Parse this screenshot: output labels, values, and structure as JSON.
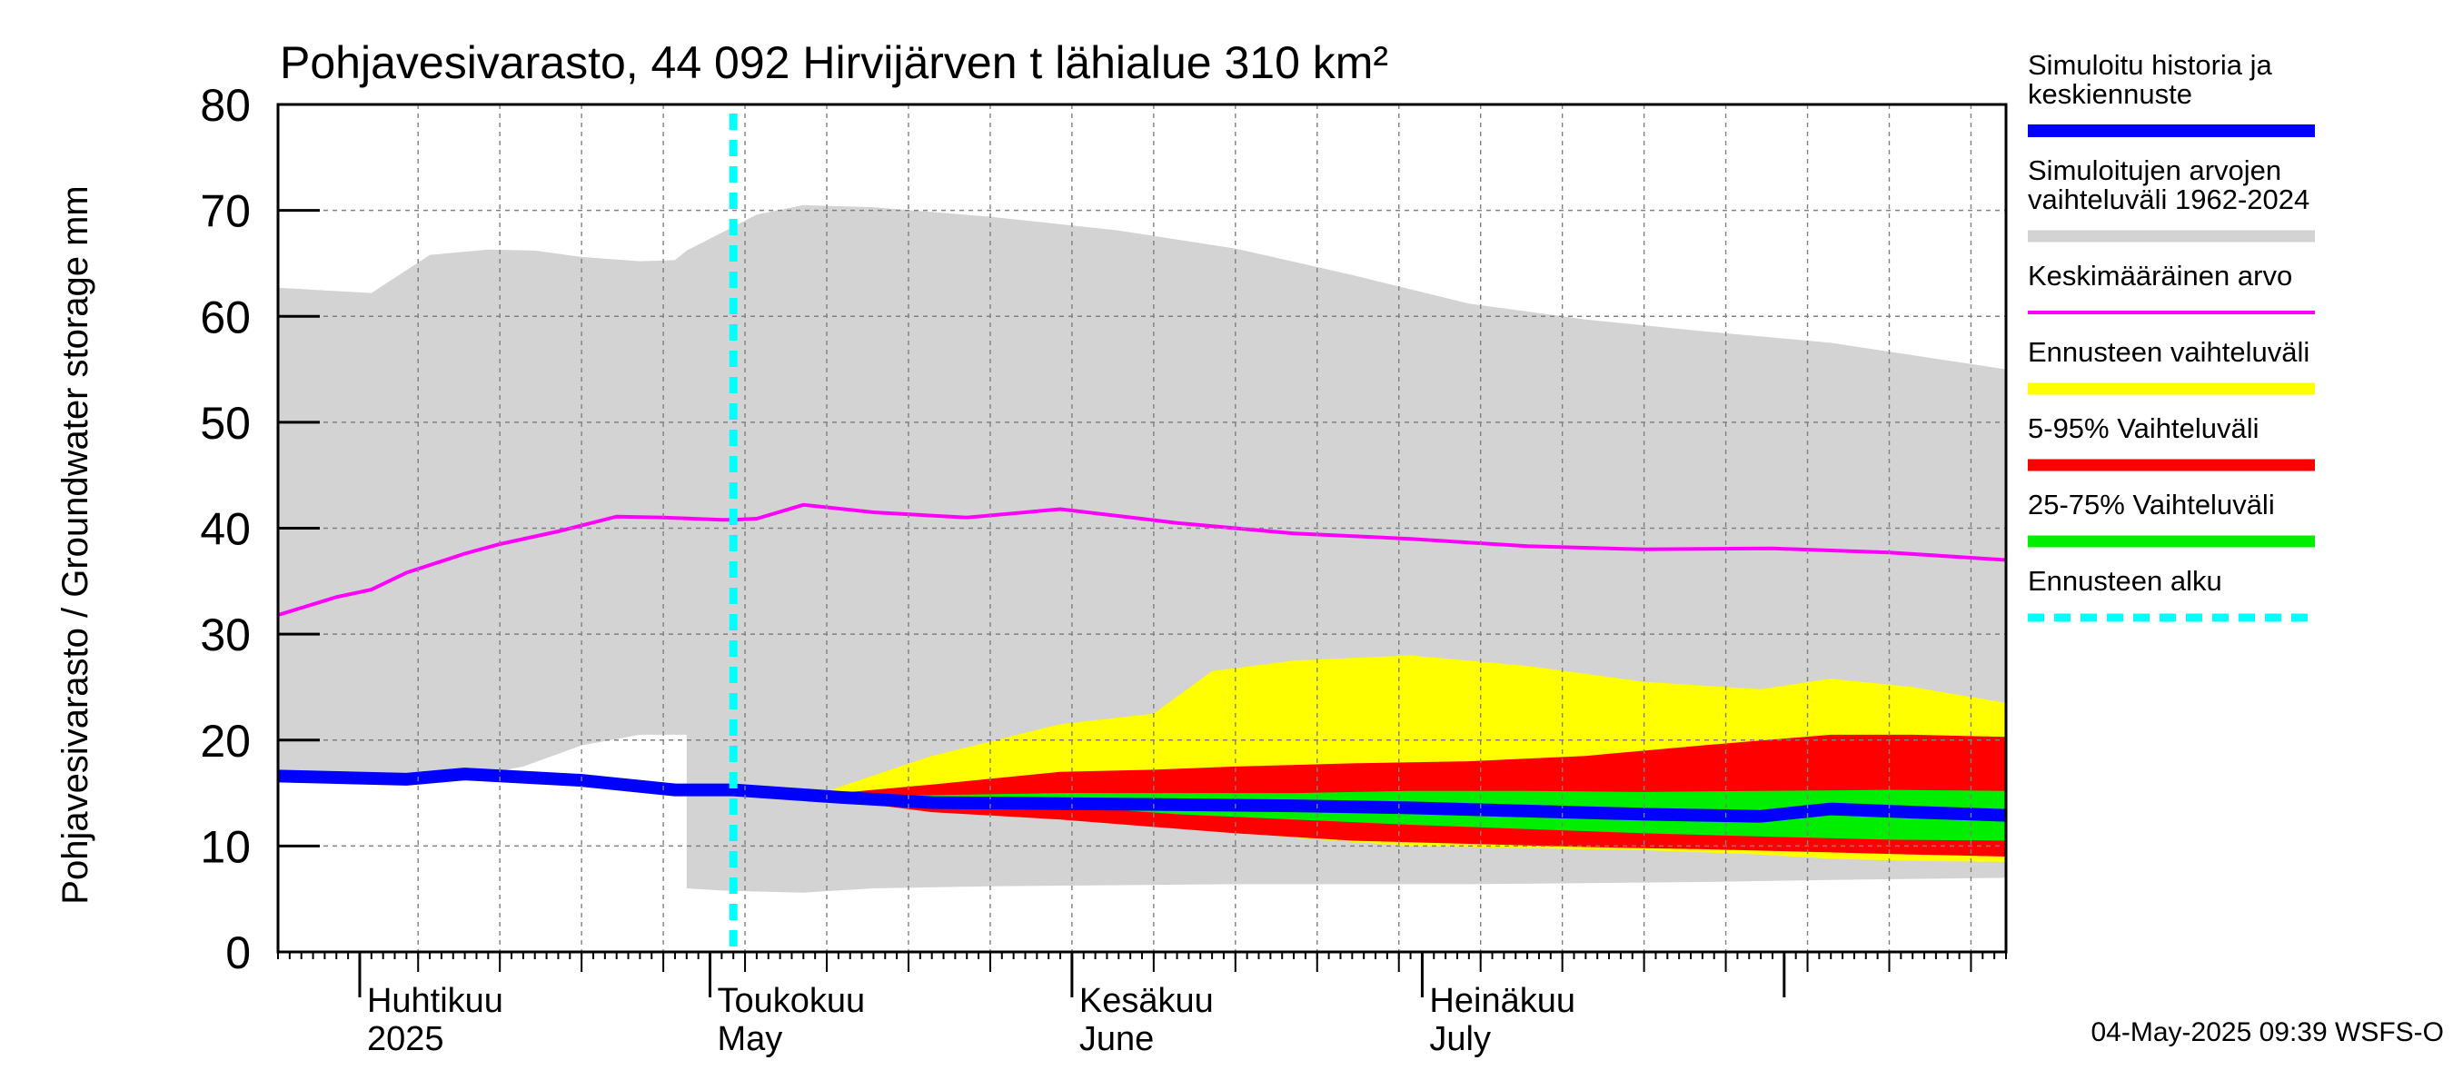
{
  "chart_data": {
    "type": "area",
    "title": "Pohjavesivarasto, 44 092 Hirvijärven t lähialue 310 km²",
    "ylabel": "Pohjavesivarasto / Groundwater storage   mm",
    "ylim": [
      0,
      80
    ],
    "yticks": [
      "0",
      "10",
      "20",
      "30",
      "40",
      "50",
      "60",
      "70",
      "80"
    ],
    "xlim": [
      "2025-03-25",
      "2025-08-20"
    ],
    "grid": true,
    "legend_position": "right",
    "month_labels": [
      {
        "date": "2025-04-01",
        "fi": "Huhtikuu",
        "en": "2025"
      },
      {
        "date": "2025-05-01",
        "fi": "Toukokuu",
        "en": "May"
      },
      {
        "date": "2025-06-01",
        "fi": "Kesäkuu",
        "en": "June"
      },
      {
        "date": "2025-07-01",
        "fi": "Heinäkuu",
        "en": "July"
      }
    ],
    "forecast_start": "2025-05-03",
    "timestamp": "04-May-2025 09:39 WSFS-O",
    "colors": {
      "history": "#0000ff",
      "sim_range": "#d3d3d3",
      "mean": "#ff00ff",
      "forecast_range": "#ffff00",
      "p5_95": "#ff0000",
      "p25_75": "#00ee00",
      "forecast_start": "#00ffff"
    },
    "legend": [
      {
        "key": "history",
        "lines": [
          "Simuloitu historia ja",
          "keskiennuste"
        ],
        "style": "thick"
      },
      {
        "key": "sim_range",
        "lines": [
          "Simuloitujen arvojen",
          "vaihteluväli 1962-2024"
        ],
        "style": "band"
      },
      {
        "key": "mean",
        "lines": [
          "Keskimääräinen arvo"
        ],
        "style": "thin"
      },
      {
        "key": "forecast_range",
        "lines": [
          "Ennusteen vaihteluväli"
        ],
        "style": "band"
      },
      {
        "key": "p5_95",
        "lines": [
          "5-95% Vaihteluväli"
        ],
        "style": "band"
      },
      {
        "key": "p25_75",
        "lines": [
          "25-75% Vaihteluväli"
        ],
        "style": "band"
      },
      {
        "key": "forecast_start",
        "lines": [
          "Ennusteen alku"
        ],
        "style": "dashed"
      }
    ],
    "series": [
      {
        "key": "sim_range",
        "type": "band",
        "x": [
          "2025-03-25",
          "2025-04-02",
          "2025-04-07",
          "2025-04-12",
          "2025-04-16",
          "2025-04-20",
          "2025-04-25",
          "2025-04-28",
          "2025-04-29",
          "2025-05-02",
          "2025-05-05",
          "2025-05-09",
          "2025-05-15",
          "2025-05-25",
          "2025-06-05",
          "2025-06-15",
          "2025-06-25",
          "2025-07-05",
          "2025-07-15",
          "2025-07-25",
          "2025-08-05",
          "2025-08-20"
        ],
        "upper": [
          62.7,
          62.2,
          65.8,
          66.3,
          66.2,
          65.6,
          65.2,
          65.3,
          66.2,
          67.9,
          69.6,
          70.5,
          70.3,
          69.4,
          68.1,
          66.4,
          63.9,
          61.2,
          59.7,
          58.6,
          57.5,
          55.0
        ],
        "lower": [
          0.0,
          0.0,
          0.0,
          0.0,
          0.0,
          0.0,
          0.0,
          0.0,
          6.0,
          5.8,
          5.7,
          5.6,
          6.0,
          6.2,
          6.3,
          6.4,
          6.4,
          6.4,
          6.5,
          6.6,
          6.8,
          7.0
        ]
      },
      {
        "key": "sim_range_notch",
        "type": "band",
        "x": [
          "2025-03-25",
          "2025-04-10",
          "2025-04-15",
          "2025-04-20",
          "2025-04-25",
          "2025-04-28",
          "2025-04-29"
        ],
        "upper": [
          16.6,
          16.4,
          17.5,
          19.5,
          20.5,
          20.5,
          20.5
        ],
        "lower": [
          0.0,
          0.0,
          0.0,
          0.0,
          0.0,
          0.0,
          0.0
        ],
        "fill": "#ffffff"
      },
      {
        "key": "forecast_range",
        "type": "band",
        "x": [
          "2025-05-03",
          "2025-05-10",
          "2025-05-20",
          "2025-05-31",
          "2025-06-08",
          "2025-06-13",
          "2025-06-20",
          "2025-06-30",
          "2025-07-10",
          "2025-07-20",
          "2025-07-30",
          "2025-08-05",
          "2025-08-12",
          "2025-08-20"
        ],
        "upper": [
          15.2,
          14.8,
          18.5,
          21.5,
          22.5,
          26.5,
          27.5,
          28.0,
          27.0,
          25.5,
          24.8,
          25.8,
          25.0,
          23.5
        ],
        "lower": [
          15.2,
          14.6,
          13.5,
          12.7,
          12.2,
          11.5,
          10.8,
          10.0,
          9.8,
          9.6,
          9.2,
          8.8,
          8.6,
          8.5
        ]
      },
      {
        "key": "p5_95",
        "type": "band",
        "x": [
          "2025-05-03",
          "2025-05-10",
          "2025-05-20",
          "2025-05-31",
          "2025-06-08",
          "2025-06-15",
          "2025-06-25",
          "2025-07-05",
          "2025-07-15",
          "2025-07-25",
          "2025-08-05",
          "2025-08-12",
          "2025-08-20"
        ],
        "upper": [
          15.2,
          14.8,
          15.8,
          17.0,
          17.2,
          17.5,
          17.8,
          18.0,
          18.5,
          19.5,
          20.5,
          20.5,
          20.3
        ],
        "lower": [
          15.2,
          14.6,
          13.2,
          12.5,
          11.8,
          11.2,
          10.5,
          10.2,
          9.9,
          9.7,
          9.4,
          9.2,
          9.0
        ]
      },
      {
        "key": "p25_75",
        "type": "band",
        "x": [
          "2025-05-03",
          "2025-05-10",
          "2025-05-20",
          "2025-05-31",
          "2025-06-10",
          "2025-06-20",
          "2025-06-30",
          "2025-07-10",
          "2025-07-20",
          "2025-07-30",
          "2025-08-10",
          "2025-08-20"
        ],
        "upper": [
          15.2,
          14.7,
          14.8,
          15.0,
          15.0,
          15.0,
          15.2,
          15.2,
          15.1,
          15.2,
          15.3,
          15.2
        ],
        "lower": [
          15.2,
          14.6,
          14.0,
          13.8,
          13.0,
          12.5,
          12.0,
          11.6,
          11.2,
          10.9,
          10.6,
          10.5
        ]
      },
      {
        "key": "mean",
        "type": "line",
        "x": [
          "2025-03-25",
          "2025-03-30",
          "2025-04-02",
          "2025-04-05",
          "2025-04-10",
          "2025-04-13",
          "2025-04-18",
          "2025-04-23",
          "2025-04-27",
          "2025-05-02",
          "2025-05-03",
          "2025-05-05",
          "2025-05-09",
          "2025-05-15",
          "2025-05-23",
          "2025-05-31",
          "2025-06-10",
          "2025-06-20",
          "2025-06-30",
          "2025-07-10",
          "2025-07-20",
          "2025-07-31",
          "2025-08-10",
          "2025-08-20"
        ],
        "values": [
          31.8,
          33.5,
          34.2,
          35.8,
          37.6,
          38.5,
          39.7,
          41.1,
          41.0,
          40.8,
          40.8,
          40.9,
          42.2,
          41.5,
          41.0,
          41.8,
          40.5,
          39.5,
          39.0,
          38.3,
          38.0,
          38.1,
          37.7,
          37.0
        ]
      },
      {
        "key": "history",
        "type": "line",
        "x": [
          "2025-03-25",
          "2025-04-05",
          "2025-04-10",
          "2025-04-20",
          "2025-04-28",
          "2025-05-03",
          "2025-05-12",
          "2025-05-20",
          "2025-05-31",
          "2025-06-10",
          "2025-06-20",
          "2025-06-30",
          "2025-07-10",
          "2025-07-20",
          "2025-07-30",
          "2025-08-05",
          "2025-08-12",
          "2025-08-20"
        ],
        "values": [
          16.6,
          16.3,
          16.8,
          16.2,
          15.3,
          15.3,
          14.6,
          14.1,
          14.0,
          13.9,
          13.8,
          13.6,
          13.3,
          13.0,
          12.8,
          13.5,
          13.2,
          12.9
        ]
      }
    ]
  }
}
